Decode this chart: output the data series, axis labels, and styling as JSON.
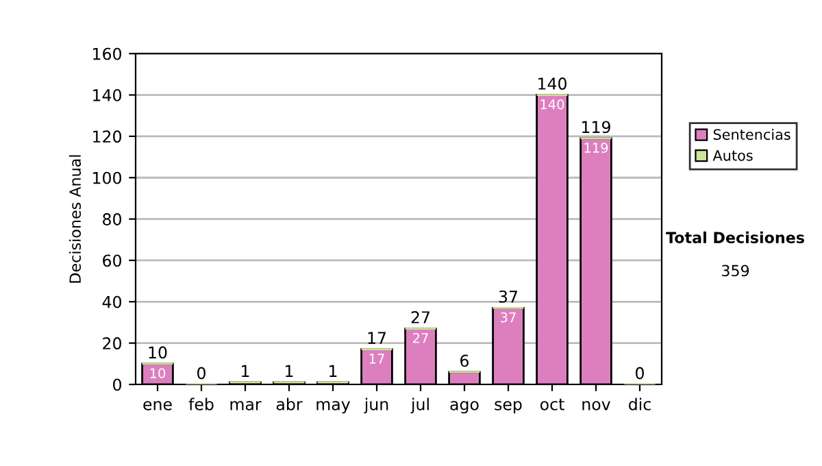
{
  "chart_data": {
    "type": "bar",
    "stacked": true,
    "ylabel": "Decisiones Anual",
    "categories": [
      "ene",
      "feb",
      "mar",
      "abr",
      "may",
      "jun",
      "jul",
      "ago",
      "sep",
      "oct",
      "nov",
      "dic"
    ],
    "series": [
      {
        "name": "Sentencias",
        "color": "#dd7fbf",
        "values": [
          10,
          0,
          1,
          1,
          1,
          17,
          27,
          6,
          37,
          140,
          119,
          0
        ],
        "value_labels": [
          "10",
          null,
          null,
          null,
          null,
          "17",
          "27",
          null,
          "37",
          "140",
          "119",
          null
        ]
      },
      {
        "name": "Autos",
        "color": "#cce398",
        "values": [
          0,
          0,
          0,
          0,
          0,
          0,
          0,
          0,
          0,
          0,
          0,
          0
        ]
      }
    ],
    "totals": [
      "10",
      "0",
      "1",
      "1",
      "1",
      "17",
      "27",
      "6",
      "37",
      "140",
      "119",
      "0"
    ],
    "ylim": [
      0,
      160
    ],
    "yticks": [
      0,
      20,
      40,
      60,
      80,
      100,
      120,
      140,
      160
    ],
    "grid": "y",
    "legend": "right",
    "annotations": [
      "Total Decisiones",
      "359"
    ]
  }
}
